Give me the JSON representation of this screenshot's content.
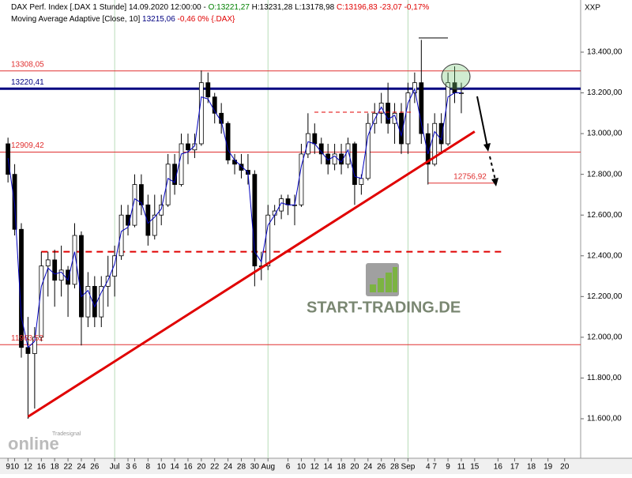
{
  "chart_data": {
    "type": "candlestick",
    "header": [
      {
        "text": "DAX Perf. Index [.DAX  1 Stunde] 14.09.2020 12:00:00 -",
        "color": "#000000"
      },
      {
        "text": "O:13221,27",
        "color": "#008000"
      },
      {
        "text": "H:13231,28 L:13178,98",
        "color": "#000000"
      },
      {
        "text": "C:13196,83 -23,07 -0,17%",
        "color": "#e00000"
      }
    ],
    "subheader": [
      {
        "text": "Moving Average Adaptive [Close, 10]",
        "color": "#000000"
      },
      {
        "text": "13215,06",
        "color": "#000080"
      },
      {
        "text": "-0,46 0% {.DAX}",
        "color": "#e00000"
      }
    ],
    "symbol": "XXP",
    "watermark": "START-TRADING.DE",
    "logo": "online",
    "logo_small": "Tradesignal",
    "xlim": [
      -1.2,
      85.9
    ],
    "ylim": [
      11406,
      13656
    ],
    "yticks": [
      {
        "value": 11600,
        "label": "11.600,00"
      },
      {
        "value": 11800,
        "label": "11.800,00"
      },
      {
        "value": 12000,
        "label": "12.000,00"
      },
      {
        "value": 12200,
        "label": "12.200,00"
      },
      {
        "value": 12400,
        "label": "12.400,00"
      },
      {
        "value": 12600,
        "label": "12.600,00"
      },
      {
        "value": 12800,
        "label": "12.800,00"
      },
      {
        "value": 13000,
        "label": "13.000,00"
      },
      {
        "value": 13200,
        "label": "13.200,00"
      },
      {
        "value": 13400,
        "label": "13.400,00"
      }
    ],
    "xticks": [
      {
        "value": 0,
        "label": "9"
      },
      {
        "value": 1,
        "label": "10"
      },
      {
        "value": 3,
        "label": "12"
      },
      {
        "value": 5,
        "label": "16"
      },
      {
        "value": 7,
        "label": "18"
      },
      {
        "value": 9,
        "label": "22"
      },
      {
        "value": 11,
        "label": "24"
      },
      {
        "value": 13,
        "label": "26"
      },
      {
        "value": 16,
        "label": "Jul"
      },
      {
        "value": 18,
        "label": "3"
      },
      {
        "value": 19,
        "label": "6"
      },
      {
        "value": 21,
        "label": "8"
      },
      {
        "value": 23,
        "label": "10"
      },
      {
        "value": 25,
        "label": "14"
      },
      {
        "value": 27,
        "label": "16"
      },
      {
        "value": 29,
        "label": "20"
      },
      {
        "value": 31,
        "label": "22"
      },
      {
        "value": 33,
        "label": "24"
      },
      {
        "value": 35,
        "label": "28"
      },
      {
        "value": 37,
        "label": "30"
      },
      {
        "value": 39,
        "label": "Aug"
      },
      {
        "value": 42,
        "label": "6"
      },
      {
        "value": 44,
        "label": "10"
      },
      {
        "value": 46,
        "label": "12"
      },
      {
        "value": 48,
        "label": "14"
      },
      {
        "value": 50,
        "label": "18"
      },
      {
        "value": 52,
        "label": "20"
      },
      {
        "value": 54,
        "label": "24"
      },
      {
        "value": 56,
        "label": "26"
      },
      {
        "value": 58,
        "label": "28"
      },
      {
        "value": 60,
        "label": "Sep"
      },
      {
        "value": 63,
        "label": "4"
      },
      {
        "value": 64,
        "label": "7"
      },
      {
        "value": 66,
        "label": "9"
      },
      {
        "value": 68,
        "label": "11"
      },
      {
        "value": 70,
        "label": "15"
      },
      {
        "value": 73.5,
        "label": "16"
      },
      {
        "value": 76,
        "label": "17"
      },
      {
        "value": 78.5,
        "label": "18"
      },
      {
        "value": 81,
        "label": "19"
      },
      {
        "value": 83.5,
        "label": "20"
      }
    ],
    "month_lines": [
      16,
      39,
      60
    ],
    "open": [
      12950,
      12800,
      12530,
      11950,
      11920,
      12000,
      12350,
      12380,
      12280,
      12330,
      12260,
      12500,
      12100,
      12250,
      12100,
      12250,
      12300,
      12400,
      12600,
      12550,
      12750,
      12650,
      12500,
      12600,
      12650,
      12850,
      12750,
      12950,
      12920,
      12950,
      13250,
      13180,
      13100,
      13050,
      12870,
      12850,
      12820,
      12800,
      12350,
      12350,
      12600,
      12620,
      12680,
      12650,
      12650,
      12900,
      13000,
      12950,
      12900,
      12850,
      12900,
      12850,
      12950,
      12750,
      12780,
      13050,
      13100,
      13150,
      13050,
      13100,
      12950,
      13200,
      13250,
      13000,
      12850,
      13050,
      12950,
      13250,
      13200
    ],
    "high": [
      12980,
      12850,
      12560,
      12100,
      12050,
      12420,
      12420,
      12430,
      12450,
      12350,
      12560,
      12520,
      12320,
      12300,
      12300,
      12400,
      12450,
      12650,
      12650,
      12800,
      12800,
      12700,
      12700,
      12700,
      12900,
      12900,
      13000,
      13000,
      13000,
      13310,
      13300,
      13200,
      13150,
      13060,
      12900,
      12900,
      12900,
      12820,
      12420,
      12650,
      12650,
      12700,
      12700,
      12700,
      12950,
      13100,
      13050,
      12980,
      12950,
      12950,
      12950,
      12980,
      12960,
      12800,
      13100,
      13150,
      13200,
      13250,
      13150,
      13150,
      13250,
      13300,
      13460,
      13050,
      13100,
      13100,
      13300,
      13330,
      13250
    ],
    "low": [
      12760,
      12500,
      11900,
      11600,
      11650,
      11980,
      12200,
      12150,
      12200,
      12100,
      12240,
      11960,
      12050,
      12050,
      12050,
      12150,
      12200,
      12380,
      12500,
      12540,
      12600,
      12450,
      12480,
      12550,
      12640,
      12700,
      12740,
      12850,
      12880,
      12940,
      13150,
      13050,
      13000,
      12850,
      12800,
      12780,
      12750,
      12250,
      12280,
      12330,
      12550,
      12580,
      12600,
      12550,
      12640,
      12880,
      12900,
      12850,
      12800,
      12820,
      12800,
      12830,
      12650,
      12700,
      12770,
      13000,
      13050,
      13000,
      12950,
      12900,
      12900,
      13150,
      12950,
      12750,
      12840,
      12900,
      12940,
      13150,
      13100
    ],
    "close": [
      12800,
      12530,
      11950,
      11920,
      12000,
      12350,
      12380,
      12280,
      12330,
      12260,
      12500,
      12100,
      12250,
      12100,
      12250,
      12300,
      12400,
      12600,
      12550,
      12750,
      12650,
      12500,
      12600,
      12650,
      12850,
      12750,
      12950,
      12920,
      12950,
      13250,
      13180,
      13100,
      13050,
      12870,
      12850,
      12820,
      12800,
      12350,
      12350,
      12600,
      12620,
      12680,
      12650,
      12650,
      12900,
      13000,
      12950,
      12900,
      12850,
      12900,
      12850,
      12950,
      12750,
      12780,
      13050,
      13100,
      13150,
      13050,
      13100,
      12950,
      13200,
      13250,
      13000,
      12850,
      13050,
      12950,
      13250,
      13200,
      13200
    ],
    "ma": [
      12880,
      12650,
      12100,
      11950,
      11980,
      12250,
      12340,
      12310,
      12320,
      12280,
      12420,
      12200,
      12230,
      12150,
      12220,
      12280,
      12360,
      12520,
      12540,
      12680,
      12660,
      12560,
      12590,
      12630,
      12780,
      12760,
      12900,
      12910,
      12940,
      13180,
      13170,
      13110,
      13060,
      12920,
      12870,
      12840,
      12810,
      12420,
      12370,
      12550,
      12600,
      12660,
      12650,
      12650,
      12840,
      12960,
      12950,
      12910,
      12870,
      12890,
      12860,
      12920,
      12790,
      12780,
      12990,
      13070,
      13130,
      13070,
      13090,
      12990,
      13150,
      13220,
      13050,
      12900,
      13010,
      12970,
      13180,
      13200,
      13200
    ],
    "ma_color": "#0000c0",
    "levels": [
      {
        "value": 13308.05,
        "label": "13308,05",
        "color": "#e03030",
        "width": 1
      },
      {
        "value": 13220.41,
        "label": "13220,41",
        "color": "#000080",
        "width": 3
      },
      {
        "value": 12909.42,
        "label": "12909,42",
        "color": "#e03030",
        "width": 1
      },
      {
        "value": 11963.52,
        "label": "11963,52",
        "color": "#e03030",
        "width": 1
      }
    ],
    "target": {
      "value": 12756.92,
      "label": "12756,92",
      "from": 63,
      "to": 73
    },
    "dashed_level": {
      "value": 12420,
      "from": 5,
      "to": 74,
      "color": "#e00000"
    },
    "trendline": {
      "x": [
        3,
        70
      ],
      "y": [
        11610,
        13010
      ],
      "color": "#e00000"
    }
  }
}
